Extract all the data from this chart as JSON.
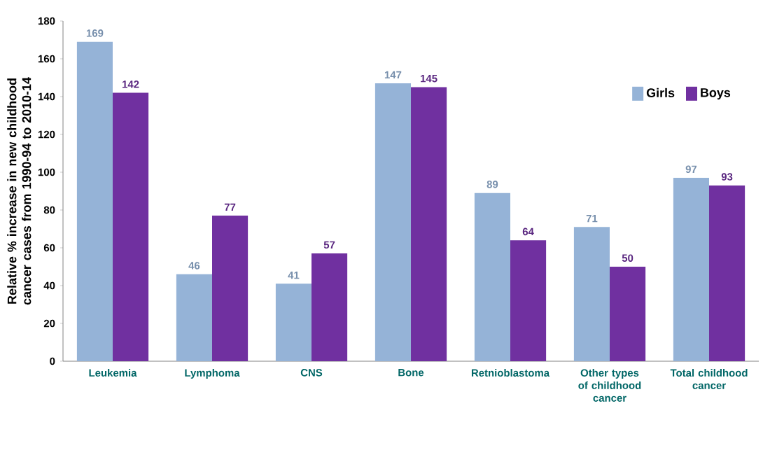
{
  "chart_data": {
    "type": "bar",
    "ylabel": "Relative % increase in new childhood cancer cases  from 1990-94  to  2010-14",
    "categories": [
      "Leukemia",
      "Lymphoma",
      "CNS",
      "Bone",
      "Retnioblastoma",
      "Other types of childhood cancer",
      "Total childhood cancer"
    ],
    "series": [
      {
        "name": "Girls",
        "color": "#95b3d7",
        "values": [
          169,
          46,
          41,
          147,
          89,
          71,
          97
        ]
      },
      {
        "name": "Boys",
        "color": "#7030a0",
        "values": [
          142,
          77,
          57,
          145,
          64,
          50,
          93
        ]
      }
    ],
    "ylim": [
      0,
      180
    ],
    "yticks": [
      0,
      20,
      40,
      60,
      80,
      100,
      120,
      140,
      160,
      180
    ],
    "data_labels": true,
    "grid": false,
    "legend": "top right"
  }
}
